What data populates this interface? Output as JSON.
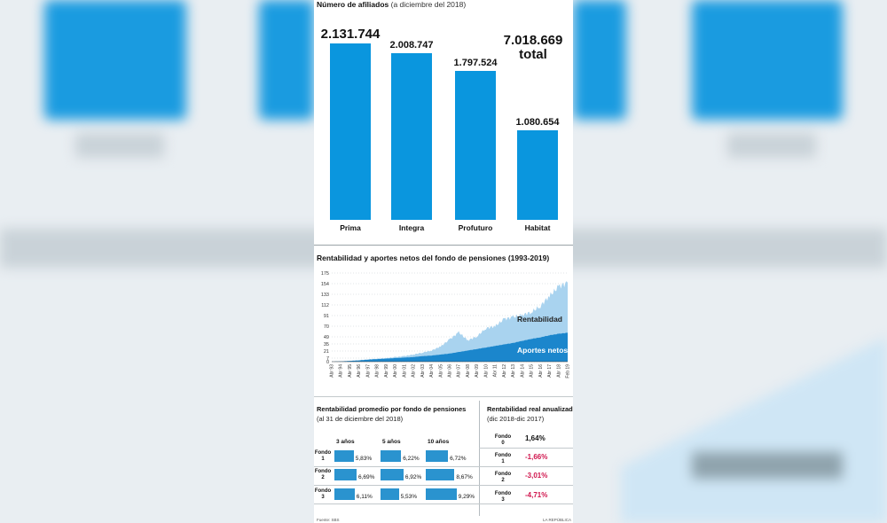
{
  "affiliates": {
    "title_bold": "Número de afiliados",
    "title_light": "(a diciembre del 2018)",
    "bars": [
      {
        "label": "Prima",
        "value": 2131744,
        "display": "2.131.744"
      },
      {
        "label": "Integra",
        "value": 2008747,
        "display": "2.008.747"
      },
      {
        "label": "Profuturo",
        "value": 1797524,
        "display": "1.797.524"
      },
      {
        "label": "Habitat",
        "value": 1080654,
        "display": "1.080.654"
      }
    ],
    "total_value": "7.018.669",
    "total_label": "total"
  },
  "chart_data": [
    {
      "type": "bar",
      "title": "Número de afiliados (a diciembre del 2018)",
      "categories": [
        "Prima",
        "Integra",
        "Profuturo",
        "Habitat"
      ],
      "values": [
        2131744,
        2008747,
        1797524,
        1080654
      ],
      "total": 7018669
    },
    {
      "type": "area",
      "title": "Rentabilidad y aportes netos del fondo de pensiones (1993-2019)",
      "yticks": [
        0,
        7,
        21,
        35,
        49,
        70,
        91,
        112,
        133,
        154,
        175
      ],
      "ylim": [
        0,
        175
      ],
      "xticks": [
        "Abr 93",
        "Abr 94",
        "Abr 95",
        "Abr 96",
        "Abr 97",
        "Abr 98",
        "Abr 99",
        "Abr 00",
        "Abr 01",
        "Abr 02",
        "Abr 03",
        "Abr 04",
        "Abr 05",
        "Abr 06",
        "Abr 07",
        "Abr 08",
        "Abr 09",
        "Abr 10",
        "Abr 11",
        "Abr 12",
        "Abr 13",
        "Abr 14",
        "Abr 15",
        "Abr 16",
        "Abr 17",
        "Abr 18",
        "Feb 19"
      ],
      "series": [
        {
          "name": "Rentabilidad",
          "values": [
            0,
            0.5,
            1.5,
            3,
            4.5,
            6,
            7,
            9,
            11,
            14,
            18,
            22,
            30,
            44,
            58,
            42,
            50,
            66,
            70,
            84,
            88,
            92,
            98,
            110,
            130,
            148,
            156
          ]
        },
        {
          "name": "Aportes netos",
          "values": [
            0,
            0.5,
            1.5,
            2.5,
            4,
            5,
            6,
            7,
            8,
            9,
            11,
            12,
            14,
            16,
            19,
            22,
            25,
            28,
            31,
            34,
            37,
            41,
            45,
            48,
            52,
            55,
            57
          ]
        }
      ]
    },
    {
      "type": "bar",
      "title": "Rentabilidad promedio por fondo de pensiones (al 31 de diciembre del 2018)",
      "categories": [
        "Fondo 1",
        "Fondo 2",
        "Fondo 3"
      ],
      "series": [
        {
          "name": "3 años",
          "values": [
            5.83,
            6.69,
            6.11
          ]
        },
        {
          "name": "5 años",
          "values": [
            6.22,
            6.92,
            5.53
          ]
        },
        {
          "name": "10 años",
          "values": [
            6.72,
            8.67,
            9.29
          ]
        }
      ]
    },
    {
      "type": "table",
      "title": "Rentabilidad real anualizada (dic 2018-dic 2017)",
      "rows": [
        {
          "fondo": "Fondo 0",
          "value": "1,64%"
        },
        {
          "fondo": "Fondo 1",
          "value": "-1,66%"
        },
        {
          "fondo": "Fondo 2",
          "value": "-3,01%"
        },
        {
          "fondo": "Fondo 3",
          "value": "-4,71%"
        }
      ]
    }
  ],
  "evolution": {
    "title": "Rentabilidad y aportes netos del fondo de pensiones (1993-2019)",
    "label_rent": "Rentabilidad",
    "label_aportes": "Aportes netos"
  },
  "avg_return": {
    "title": "Rentabilidad promedio por fondo de pensiones",
    "subtitle": "(al 31 de diciembre del 2018)",
    "columns": [
      "3 años",
      "5 años",
      "10 años"
    ],
    "fondos": [
      {
        "word": "Fondo",
        "num": "1",
        "values": [
          5.83,
          6.22,
          6.72
        ],
        "labels": [
          "5,83%",
          "6,22%",
          "6,72%"
        ]
      },
      {
        "word": "Fondo",
        "num": "2",
        "values": [
          6.69,
          6.92,
          8.67
        ],
        "labels": [
          "6,69%",
          "6,92%",
          "8,67%"
        ]
      },
      {
        "word": "Fondo",
        "num": "3",
        "values": [
          6.11,
          5.53,
          9.29
        ],
        "labels": [
          "6,11%",
          "5,53%",
          "9,29%"
        ]
      }
    ]
  },
  "real_return": {
    "title": "Rentabilidad real anualizada",
    "subtitle": "(dic 2018-dic 2017)",
    "rows": [
      {
        "word": "Fondo",
        "num": "0",
        "value": "1,64%",
        "color": "#111111"
      },
      {
        "word": "Fondo",
        "num": "1",
        "value": "-1,66%",
        "color": "#d0154d"
      },
      {
        "word": "Fondo",
        "num": "2",
        "value": "-3,01%",
        "color": "#d0154d"
      },
      {
        "word": "Fondo",
        "num": "3",
        "value": "-4,71%",
        "color": "#d0154d"
      }
    ]
  },
  "footer": {
    "source": "Fuente: SBS",
    "brand": "LA REPÚBLICA"
  },
  "colors": {
    "bar": "#0a96de",
    "rent": "#a9d3ef",
    "aportes": "#1b86cc",
    "negative": "#d0154d"
  }
}
